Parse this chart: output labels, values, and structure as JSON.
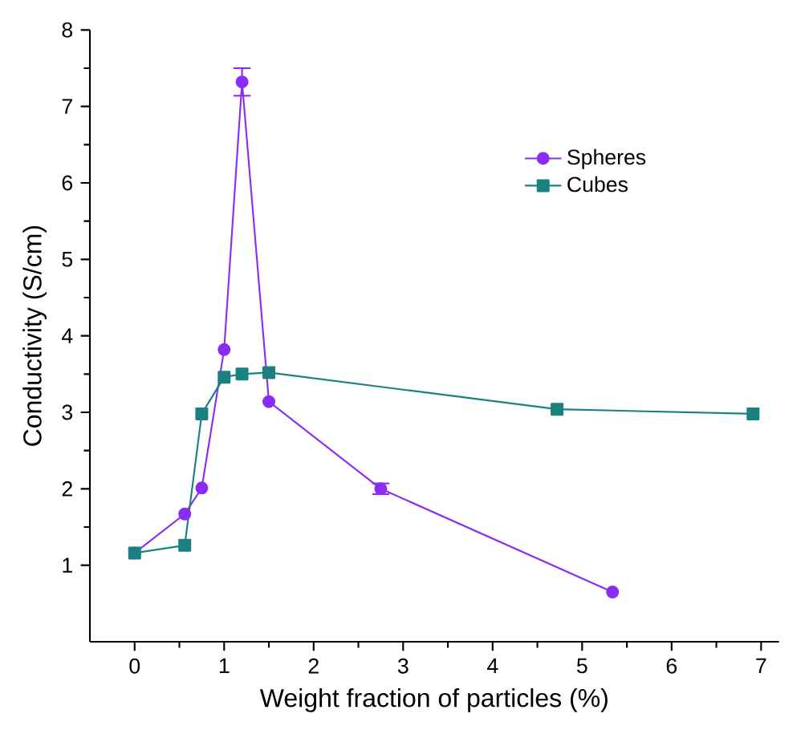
{
  "chart_data": {
    "type": "line",
    "xlabel": "Weight fraction of particles (%)",
    "ylabel": "Conductivity (S/cm)",
    "xlim": [
      -0.5,
      7.2
    ],
    "ylim": [
      0,
      8
    ],
    "xticks": [
      0,
      1,
      2,
      3,
      4,
      5,
      6,
      7
    ],
    "yticks": [
      1,
      2,
      3,
      4,
      5,
      6,
      7,
      8
    ],
    "legend": "top right",
    "grid": false,
    "line_style": "solid",
    "series": [
      {
        "name": "Spheres",
        "color": "#8b2cf5",
        "marker": "circle",
        "x": [
          0,
          0.56,
          0.75,
          1.0,
          1.2,
          1.5,
          2.75,
          5.34
        ],
        "values": [
          1.16,
          1.67,
          2.01,
          3.82,
          7.32,
          3.14,
          2.0,
          0.65
        ],
        "errors": [
          null,
          null,
          null,
          null,
          0.18,
          null,
          0.07,
          null
        ]
      },
      {
        "name": "Cubes",
        "color": "#1a8080",
        "marker": "square",
        "x": [
          0,
          0.56,
          0.75,
          1.0,
          1.2,
          1.5,
          4.72,
          6.91
        ],
        "values": [
          1.16,
          1.26,
          2.98,
          3.46,
          3.5,
          3.52,
          3.04,
          2.98
        ]
      }
    ]
  }
}
